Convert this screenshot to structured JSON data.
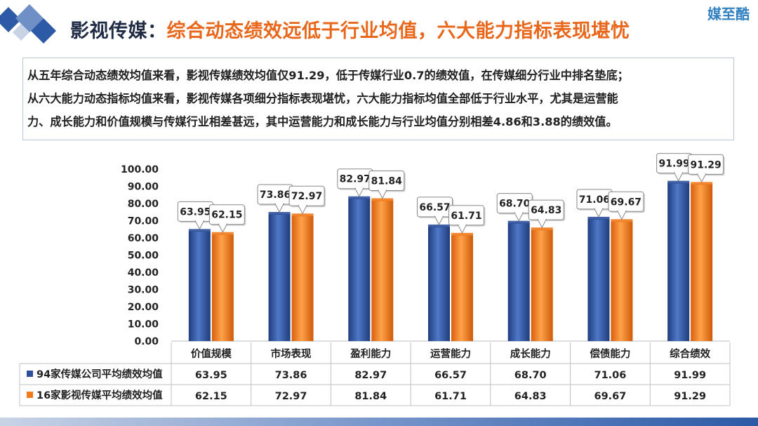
{
  "header": {
    "title_prefix": "影视传媒：",
    "title_main": "综合动态绩效远低于行业均值，六大能力指标表现堪忧",
    "brand": "媒至酷"
  },
  "summary": {
    "lines": [
      "从五年综合动态绩效均值来看，影视传媒绩效均值仅91.29，低于传媒行业0.7的绩效值，在传媒细分行业中排名垫底；",
      "从六大能力动态指标均值来看，影视传媒各项细分指标表现堪忧，六大能力指标均值全部低于行业水平，尤其是运营能",
      "力、成长能力和价值规模与传媒行业相差甚远，其中运营能力和成长能力与行业均值分别相差4.86和3.88的绩效值。"
    ]
  },
  "colors": {
    "series1": "#2e4f9a",
    "series2": "#f07a1c",
    "title_dark": "#1f2a44",
    "title_accent": "#e8671b"
  },
  "chart_data": {
    "type": "bar",
    "categories": [
      "价值规模",
      "市场表现",
      "盈利能力",
      "运营能力",
      "成长能力",
      "偿债能力",
      "综合绩效"
    ],
    "series": [
      {
        "name": "94家传媒公司平均绩效均值",
        "values": [
          63.95,
          73.86,
          82.97,
          66.57,
          68.7,
          71.06,
          91.99
        ]
      },
      {
        "name": "16家影视传媒平均绩效均值",
        "values": [
          62.15,
          72.97,
          81.84,
          61.71,
          64.83,
          69.67,
          91.29
        ]
      }
    ],
    "ylim": [
      0,
      100
    ],
    "yticks": [
      "0.00",
      "10.00",
      "20.00",
      "30.00",
      "40.00",
      "50.00",
      "60.00",
      "70.00",
      "80.00",
      "90.00",
      "100.00"
    ],
    "value_labels": [
      [
        "63.95",
        "73.86",
        "82.97",
        "66.57",
        "68.70",
        "71.06",
        "91.99"
      ],
      [
        "62.15",
        "72.97",
        "81.84",
        "61.71",
        "64.83",
        "69.67",
        "91.29"
      ]
    ],
    "data_table": true,
    "grid": false,
    "legend": "data-table"
  }
}
